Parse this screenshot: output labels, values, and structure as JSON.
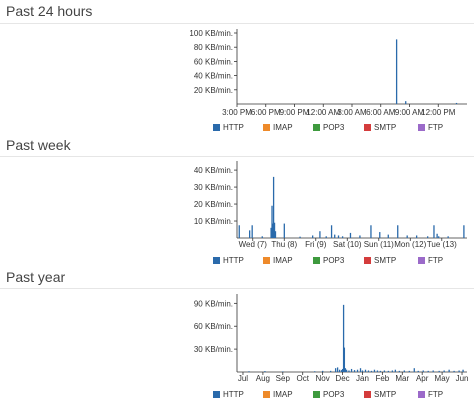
{
  "sections": [
    {
      "title": "Past 24 hours"
    },
    {
      "title": "Past week"
    },
    {
      "title": "Past year"
    }
  ],
  "legend": [
    {
      "label": "HTTP",
      "color": "#2a6aab"
    },
    {
      "label": "IMAP",
      "color": "#ee8a2a"
    },
    {
      "label": "POP3",
      "color": "#3e9a3e"
    },
    {
      "label": "SMTP",
      "color": "#d43c3c"
    },
    {
      "label": "FTP",
      "color": "#9b6ac9"
    }
  ],
  "chart_data": [
    {
      "type": "bar",
      "title": "Past 24 hours",
      "unit": "KB/min.",
      "x": [
        "3:00 PM",
        "6:00 PM",
        "9:00 PM",
        "12:00 AM",
        "3:00 AM",
        "6:00 AM",
        "9:00 AM",
        "12:00 PM"
      ],
      "xlim": [
        15,
        39
      ],
      "ylim": [
        0,
        100
      ],
      "ticks": [
        {
          "v": 100,
          "label": "100 KB/min."
        },
        {
          "v": 80,
          "label": "80 KB/min."
        },
        {
          "v": 60,
          "label": "60 KB/min."
        },
        {
          "v": 40,
          "label": "40 KB/min."
        },
        {
          "v": 20,
          "label": "20 KB/min."
        }
      ],
      "series": [
        {
          "name": "HTTP",
          "color": "#2a6aab",
          "points": [
            [
              31.65,
              91
            ],
            [
              32.6,
              4
            ],
            [
              37.9,
              1.5
            ]
          ]
        }
      ]
    },
    {
      "type": "bar",
      "title": "Past week",
      "unit": "KB/min.",
      "x": [
        "Wed (7)",
        "Thu (8)",
        "Fri (9)",
        "Sat (10)",
        "Sun (11)",
        "Mon (12)",
        "Tue (13)"
      ],
      "xlim": [
        6.5,
        13.8
      ],
      "ylim": [
        0,
        43
      ],
      "ticks": [
        {
          "v": 40,
          "label": "40 KB/min."
        },
        {
          "v": 30,
          "label": "30 KB/min."
        },
        {
          "v": 20,
          "label": "20 KB/min."
        },
        {
          "v": 10,
          "label": "10 KB/min."
        }
      ],
      "series": [
        {
          "name": "HTTP",
          "color": "#2a6aab",
          "points": [
            [
              6.57,
              7.5
            ],
            [
              6.9,
              4.5
            ],
            [
              6.98,
              7.5
            ],
            [
              7.3,
              1
            ],
            [
              7.58,
              6
            ],
            [
              7.61,
              19
            ],
            [
              7.64,
              8.5
            ],
            [
              7.66,
              36
            ],
            [
              7.69,
              9
            ],
            [
              7.72,
              4
            ],
            [
              8.0,
              8.5
            ],
            [
              8.5,
              0.8
            ],
            [
              8.9,
              1.5
            ],
            [
              9.13,
              4
            ],
            [
              9.33,
              1
            ],
            [
              9.5,
              7.5
            ],
            [
              9.6,
              2
            ],
            [
              9.72,
              1.5
            ],
            [
              9.85,
              1
            ],
            [
              10.1,
              3
            ],
            [
              10.4,
              1.5
            ],
            [
              10.75,
              7.5
            ],
            [
              11.03,
              3.5
            ],
            [
              11.3,
              2
            ],
            [
              11.6,
              7.5
            ],
            [
              11.9,
              1.5
            ],
            [
              12.2,
              1.5
            ],
            [
              12.55,
              1
            ],
            [
              12.75,
              7.5
            ],
            [
              12.85,
              2.5
            ],
            [
              12.9,
              1
            ],
            [
              13.2,
              1
            ],
            [
              13.7,
              7.5
            ]
          ]
        }
      ]
    },
    {
      "type": "bar",
      "title": "Past year",
      "unit": "KB/min.",
      "x": [
        "Jul",
        "Aug",
        "Sep",
        "Oct",
        "Nov",
        "Dec",
        "Jan",
        "Feb",
        "Mar",
        "Apr",
        "May",
        "Jun"
      ],
      "xlim": [
        0.7,
        12.25
      ],
      "ylim": [
        0,
        97
      ],
      "ticks": [
        {
          "v": 90,
          "label": "90 KB/min."
        },
        {
          "v": 60,
          "label": "60 KB/min."
        },
        {
          "v": 30,
          "label": "30 KB/min."
        }
      ],
      "series": [
        {
          "name": "HTTP",
          "color": "#2a6aab",
          "points": [
            [
              1.3,
              1
            ],
            [
              2.1,
              1.2
            ],
            [
              3.0,
              0.8
            ],
            [
              4.6,
              1
            ],
            [
              5.0,
              1.5
            ],
            [
              5.4,
              1.5
            ],
            [
              5.65,
              5
            ],
            [
              5.75,
              6
            ],
            [
              5.85,
              3
            ],
            [
              5.95,
              2.5
            ],
            [
              6.0,
              4
            ],
            [
              6.05,
              88
            ],
            [
              6.09,
              32
            ],
            [
              6.14,
              5
            ],
            [
              6.2,
              3
            ],
            [
              6.32,
              2
            ],
            [
              6.45,
              4
            ],
            [
              6.6,
              2.5
            ],
            [
              6.75,
              3
            ],
            [
              6.9,
              5
            ],
            [
              7.0,
              2
            ],
            [
              7.15,
              3
            ],
            [
              7.3,
              2
            ],
            [
              7.45,
              1.5
            ],
            [
              7.6,
              3
            ],
            [
              7.75,
              2
            ],
            [
              7.9,
              1.5
            ],
            [
              8.1,
              2
            ],
            [
              8.3,
              1.5
            ],
            [
              8.5,
              2
            ],
            [
              8.65,
              3
            ],
            [
              8.85,
              1.5
            ],
            [
              9.1,
              2
            ],
            [
              9.35,
              1.5
            ],
            [
              9.6,
              5
            ],
            [
              9.8,
              1.5
            ],
            [
              10.05,
              2
            ],
            [
              10.3,
              1.5
            ],
            [
              10.55,
              2
            ],
            [
              10.85,
              1.5
            ],
            [
              11.1,
              2
            ],
            [
              11.35,
              3
            ],
            [
              11.6,
              1.5
            ],
            [
              11.85,
              2
            ],
            [
              12.05,
              3
            ]
          ]
        }
      ]
    }
  ]
}
